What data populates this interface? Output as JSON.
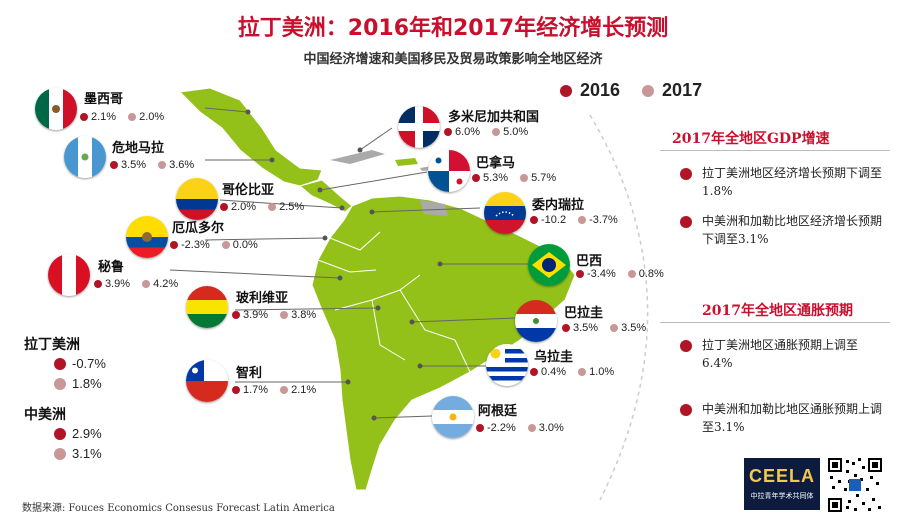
{
  "title": "拉丁美洲：2016年和2017年经济增长预测",
  "subtitle": "中国经济增速和美国移民及贸易政策影响全地区经济",
  "legend": {
    "y2016": "2016",
    "y2017": "2017"
  },
  "colors": {
    "y2016": "#b01426",
    "y2017": "#c89898",
    "title": "#c8102e"
  },
  "countries": [
    {
      "key": "mexico",
      "name": "墨西哥",
      "v2016": "2.1%",
      "v2017": "2.0%",
      "flag": "mexico-flag"
    },
    {
      "key": "guatemala",
      "name": "危地马拉",
      "v2016": "3.5%",
      "v2017": "3.6%",
      "flag": "guatemala-flag"
    },
    {
      "key": "colombia",
      "name": "哥伦比亚",
      "v2016": "2.0%",
      "v2017": "2.5%",
      "flag": "colombia-flag"
    },
    {
      "key": "ecuador",
      "name": "厄瓜多尔",
      "v2016": "-2.3%",
      "v2017": "0.0%",
      "flag": "ecuador-flag"
    },
    {
      "key": "peru",
      "name": "秘鲁",
      "v2016": "3.9%",
      "v2017": "4.2%",
      "flag": "peru-flag"
    },
    {
      "key": "bolivia",
      "name": "玻利维亚",
      "v2016": "3.9%",
      "v2017": "3.8%",
      "flag": "bolivia-flag"
    },
    {
      "key": "chile",
      "name": "智利",
      "v2016": "1.7%",
      "v2017": "2.1%",
      "flag": "chile-flag"
    },
    {
      "key": "dominican",
      "name": "多米尼加共和国",
      "v2016": "6.0%",
      "v2017": "5.0%",
      "flag": "dominican-flag"
    },
    {
      "key": "panama",
      "name": "巴拿马",
      "v2016": "5.3%",
      "v2017": "5.7%",
      "flag": "panama-flag"
    },
    {
      "key": "venezuela",
      "name": "委内瑞拉",
      "v2016": "-10.2",
      "v2017": "-3.7%",
      "flag": "venezuela-flag"
    },
    {
      "key": "brazil",
      "name": "巴西",
      "v2016": "-3.4%",
      "v2017": "0.8%",
      "flag": "brazil-flag"
    },
    {
      "key": "paraguay",
      "name": "巴拉圭",
      "v2016": "3.5%",
      "v2017": "3.5%",
      "flag": "paraguay-flag"
    },
    {
      "key": "uruguay",
      "name": "乌拉圭",
      "v2016": "0.4%",
      "v2017": "1.0%",
      "flag": "uruguay-flag"
    },
    {
      "key": "argentina",
      "name": "阿根廷",
      "v2016": "-2.2%",
      "v2017": "3.0%",
      "flag": "argentina-flag"
    }
  ],
  "summary": {
    "latam": {
      "name": "拉丁美洲",
      "v2016": "-0.7%",
      "v2017": "1.8%"
    },
    "central": {
      "name": "中美洲",
      "v2016": "2.9%",
      "v2017": "3.1%"
    }
  },
  "panel": {
    "gdp_title": "2017年全地区GDP增速",
    "gdp_items": [
      "拉丁美洲地区经济增长预期下调至1.8%",
      "中美洲和加勒比地区经济增长预期下调至3.1%"
    ],
    "inflation_title": "2017年全地区通胀预期",
    "inflation_items": [
      "拉丁美洲地区通胀预期上调至6.4%",
      "中美洲和加勒比地区通胀预期上调至3.1%"
    ]
  },
  "source": "数据来源:  Fouces Economics Consesus Forecast Latin America",
  "logo": {
    "text": "CEELA",
    "sub": "中拉青年学术共同体"
  }
}
